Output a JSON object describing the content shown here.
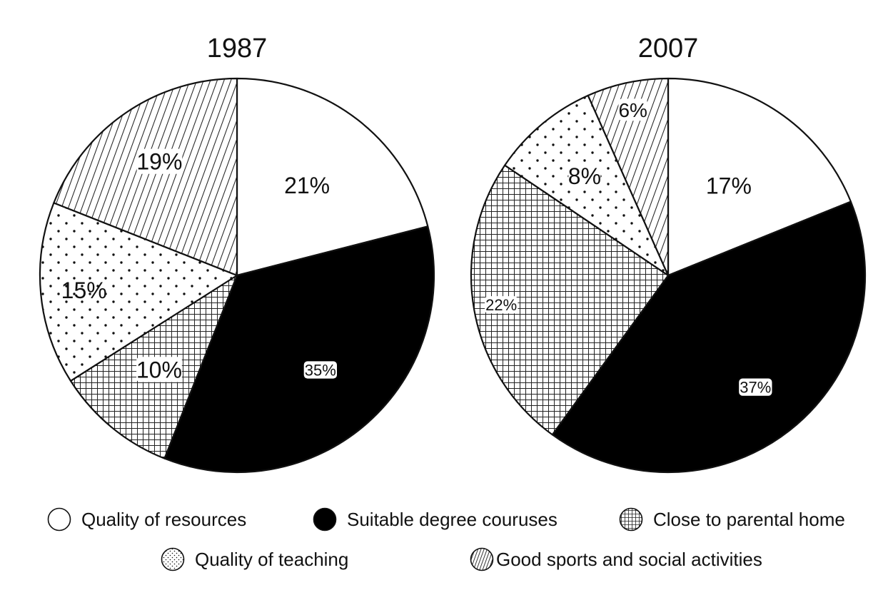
{
  "chart_data": [
    {
      "type": "pie",
      "title": "1987",
      "slices": [
        {
          "label": "Quality of resources",
          "value": 21,
          "display": "21%"
        },
        {
          "label": "Suitable degree couruses",
          "value": 35,
          "display": "35%"
        },
        {
          "label": "Close to parental home",
          "value": 10,
          "display": "10%"
        },
        {
          "label": "Quality of teaching",
          "value": 15,
          "display": "15%"
        },
        {
          "label": "Good sports and social activities",
          "value": 19,
          "display": "19%"
        }
      ]
    },
    {
      "type": "pie",
      "title": "2007",
      "slices": [
        {
          "label": "Quality of resources",
          "value": 17,
          "display": "17%"
        },
        {
          "label": "Suitable degree couruses",
          "value": 37,
          "display": "37%"
        },
        {
          "label": "Close to parental home",
          "value": 22,
          "display": "22%"
        },
        {
          "label": "Quality of teaching",
          "value": 8,
          "display": "8%"
        },
        {
          "label": "Good sports and social activities",
          "value": 6,
          "display": "6%"
        }
      ]
    }
  ],
  "legend": [
    {
      "label": "Quality of resources",
      "fill": "white"
    },
    {
      "label": "Suitable degree couruses",
      "fill": "black"
    },
    {
      "label": "Close to parental home",
      "fill": "grid"
    },
    {
      "label": "Quality of teaching",
      "fill": "dots"
    },
    {
      "label": "Good sports and social activities",
      "fill": "stripes"
    }
  ],
  "colors": {
    "black": "#000000",
    "white": "#ffffff",
    "stroke": "#111111"
  }
}
